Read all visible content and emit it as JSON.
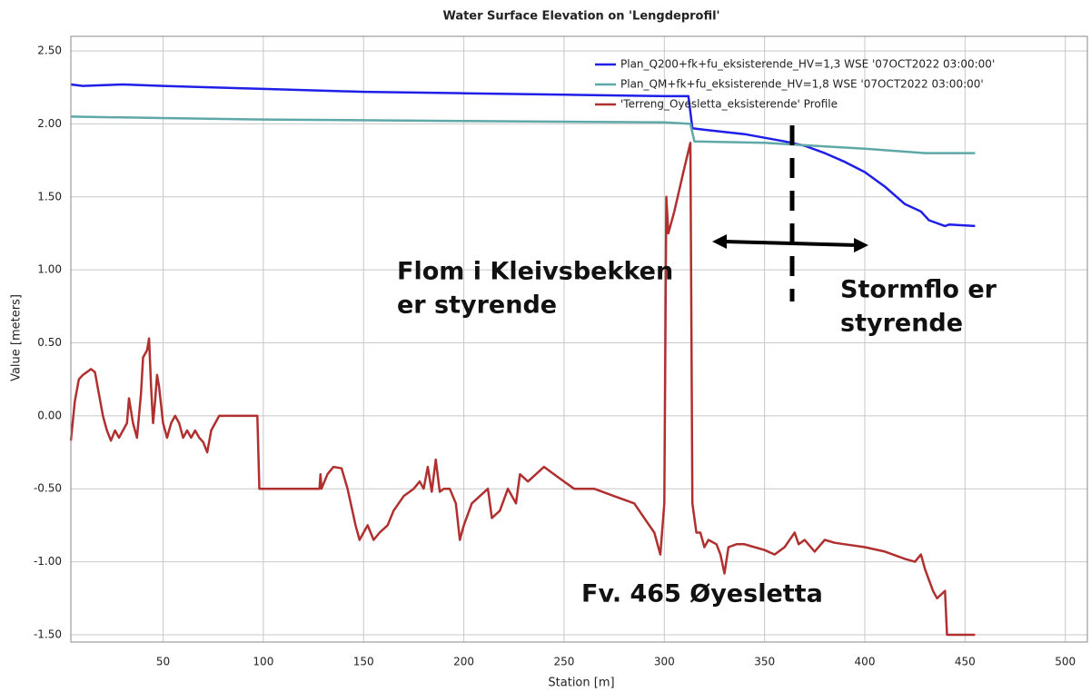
{
  "chart_data": {
    "type": "line",
    "title": "Water Surface Elevation on 'Lengdeprofil'",
    "x_label": "Station [m]",
    "y_label": "Value [meters]",
    "xlim": [
      4,
      511
    ],
    "ylim": [
      -1.55,
      2.6
    ],
    "xticks": [
      50,
      100,
      150,
      200,
      250,
      300,
      350,
      400,
      450,
      500
    ],
    "yticks": [
      {
        "value": 2.5,
        "label": "2.50"
      },
      {
        "value": 2.0,
        "label": "2.00"
      },
      {
        "value": 1.5,
        "label": "1.50"
      },
      {
        "value": 1.0,
        "label": "1.00"
      },
      {
        "value": 0.5,
        "label": "0.50"
      },
      {
        "value": 0,
        "label": "0.00"
      },
      {
        "value": -0.5,
        "label": "-0.50"
      },
      {
        "value": -1.0,
        "label": "-1.00"
      },
      {
        "value": -1.5,
        "label": "-1.50"
      }
    ],
    "grid": true,
    "legend": "top-right",
    "series": [
      {
        "name": "Plan_Q200+fk+fu_eksisterende_HV=1,3 WSE '07OCT2022 03:00:00'",
        "color": "#1f1fe8",
        "x": [
          4,
          10,
          30,
          50,
          100,
          150,
          200,
          250,
          300,
          312,
          314,
          320,
          340,
          360,
          370,
          380,
          390,
          400,
          410,
          420,
          428,
          432,
          440,
          442,
          455
        ],
        "values": [
          2.27,
          2.26,
          2.27,
          2.26,
          2.24,
          2.22,
          2.21,
          2.2,
          2.19,
          2.19,
          1.97,
          1.96,
          1.93,
          1.88,
          1.85,
          1.8,
          1.74,
          1.67,
          1.57,
          1.45,
          1.4,
          1.34,
          1.3,
          1.31,
          1.3
        ]
      },
      {
        "name": "Plan_QM+fk+fu_eksisterende_HV=1,8 WSE '07OCT2022 03:00:00'",
        "color": "#5fa8a8",
        "x": [
          4,
          50,
          100,
          200,
          300,
          313,
          315,
          350,
          400,
          430,
          455
        ],
        "values": [
          2.05,
          2.04,
          2.03,
          2.02,
          2.01,
          2.0,
          1.88,
          1.87,
          1.83,
          1.8,
          1.8
        ]
      },
      {
        "name": "'Terreng_Oyesletta_eksisterende' Profile",
        "color": "#b03030",
        "x": [
          4,
          6,
          8,
          10,
          12,
          14,
          16,
          18,
          20,
          22,
          24,
          26,
          28,
          30,
          32,
          33,
          35,
          37,
          39,
          40,
          42,
          43,
          44,
          45,
          46,
          47,
          48,
          50,
          52,
          54,
          56,
          58,
          60,
          62,
          64,
          66,
          68,
          70,
          72,
          74,
          76,
          78,
          95,
          97,
          98,
          128,
          128.5,
          129,
          132,
          135,
          139,
          142,
          146,
          148,
          150,
          152,
          155,
          158,
          162,
          165,
          170,
          175,
          178,
          180,
          182,
          184,
          186,
          188,
          190,
          193,
          196,
          198,
          200,
          204,
          208,
          212,
          214,
          218,
          222,
          226,
          228,
          232,
          236,
          240,
          245,
          250,
          255,
          265,
          275,
          285,
          290,
          295,
          298,
          300,
          301,
          302,
          305,
          310,
          313,
          314,
          316,
          318,
          320,
          322,
          326,
          328,
          330,
          332,
          336,
          340,
          345,
          350,
          355,
          360,
          365,
          367,
          370,
          375,
          380,
          385,
          390,
          400,
          410,
          420,
          425,
          428,
          430,
          434,
          436,
          440,
          441,
          455
        ],
        "values": [
          -0.17,
          0.1,
          0.25,
          0.28,
          0.3,
          0.32,
          0.3,
          0.15,
          0.0,
          -0.1,
          -0.17,
          -0.1,
          -0.15,
          -0.1,
          -0.05,
          0.12,
          -0.05,
          -0.15,
          0.15,
          0.4,
          0.45,
          0.53,
          0.2,
          -0.05,
          0.1,
          0.28,
          0.2,
          -0.05,
          -0.15,
          -0.05,
          0.0,
          -0.05,
          -0.15,
          -0.1,
          -0.15,
          -0.1,
          -0.15,
          -0.18,
          -0.25,
          -0.1,
          -0.05,
          0.0,
          0.0,
          0.0,
          -0.5,
          -0.5,
          -0.4,
          -0.5,
          -0.4,
          -0.35,
          -0.36,
          -0.5,
          -0.75,
          -0.85,
          -0.8,
          -0.75,
          -0.85,
          -0.8,
          -0.75,
          -0.65,
          -0.55,
          -0.5,
          -0.45,
          -0.5,
          -0.35,
          -0.52,
          -0.3,
          -0.52,
          -0.5,
          -0.5,
          -0.6,
          -0.85,
          -0.75,
          -0.6,
          -0.55,
          -0.5,
          -0.7,
          -0.65,
          -0.5,
          -0.6,
          -0.4,
          -0.45,
          -0.4,
          -0.35,
          -0.4,
          -0.45,
          -0.5,
          -0.5,
          -0.55,
          -0.6,
          -0.7,
          -0.8,
          -0.95,
          -0.6,
          1.5,
          1.25,
          1.4,
          1.7,
          1.87,
          -0.6,
          -0.8,
          -0.8,
          -0.9,
          -0.85,
          -0.88,
          -0.95,
          -1.08,
          -0.9,
          -0.88,
          -0.88,
          -0.9,
          -0.92,
          -0.95,
          -0.9,
          -0.8,
          -0.88,
          -0.85,
          -0.93,
          -0.85,
          -0.87,
          -0.88,
          -0.9,
          -0.93,
          -0.98,
          -1.0,
          -0.95,
          -1.05,
          -1.2,
          -1.25,
          -1.2,
          -1.5,
          -1.5
        ]
      }
    ],
    "annotations": [
      {
        "lines": [
          "Flom i Kleivsbekken",
          "er styrende"
        ]
      },
      {
        "lines": [
          "Stormflo er",
          "styrende"
        ]
      },
      {
        "lines": [
          "Fv. 465 Øyesletta"
        ]
      }
    ]
  }
}
